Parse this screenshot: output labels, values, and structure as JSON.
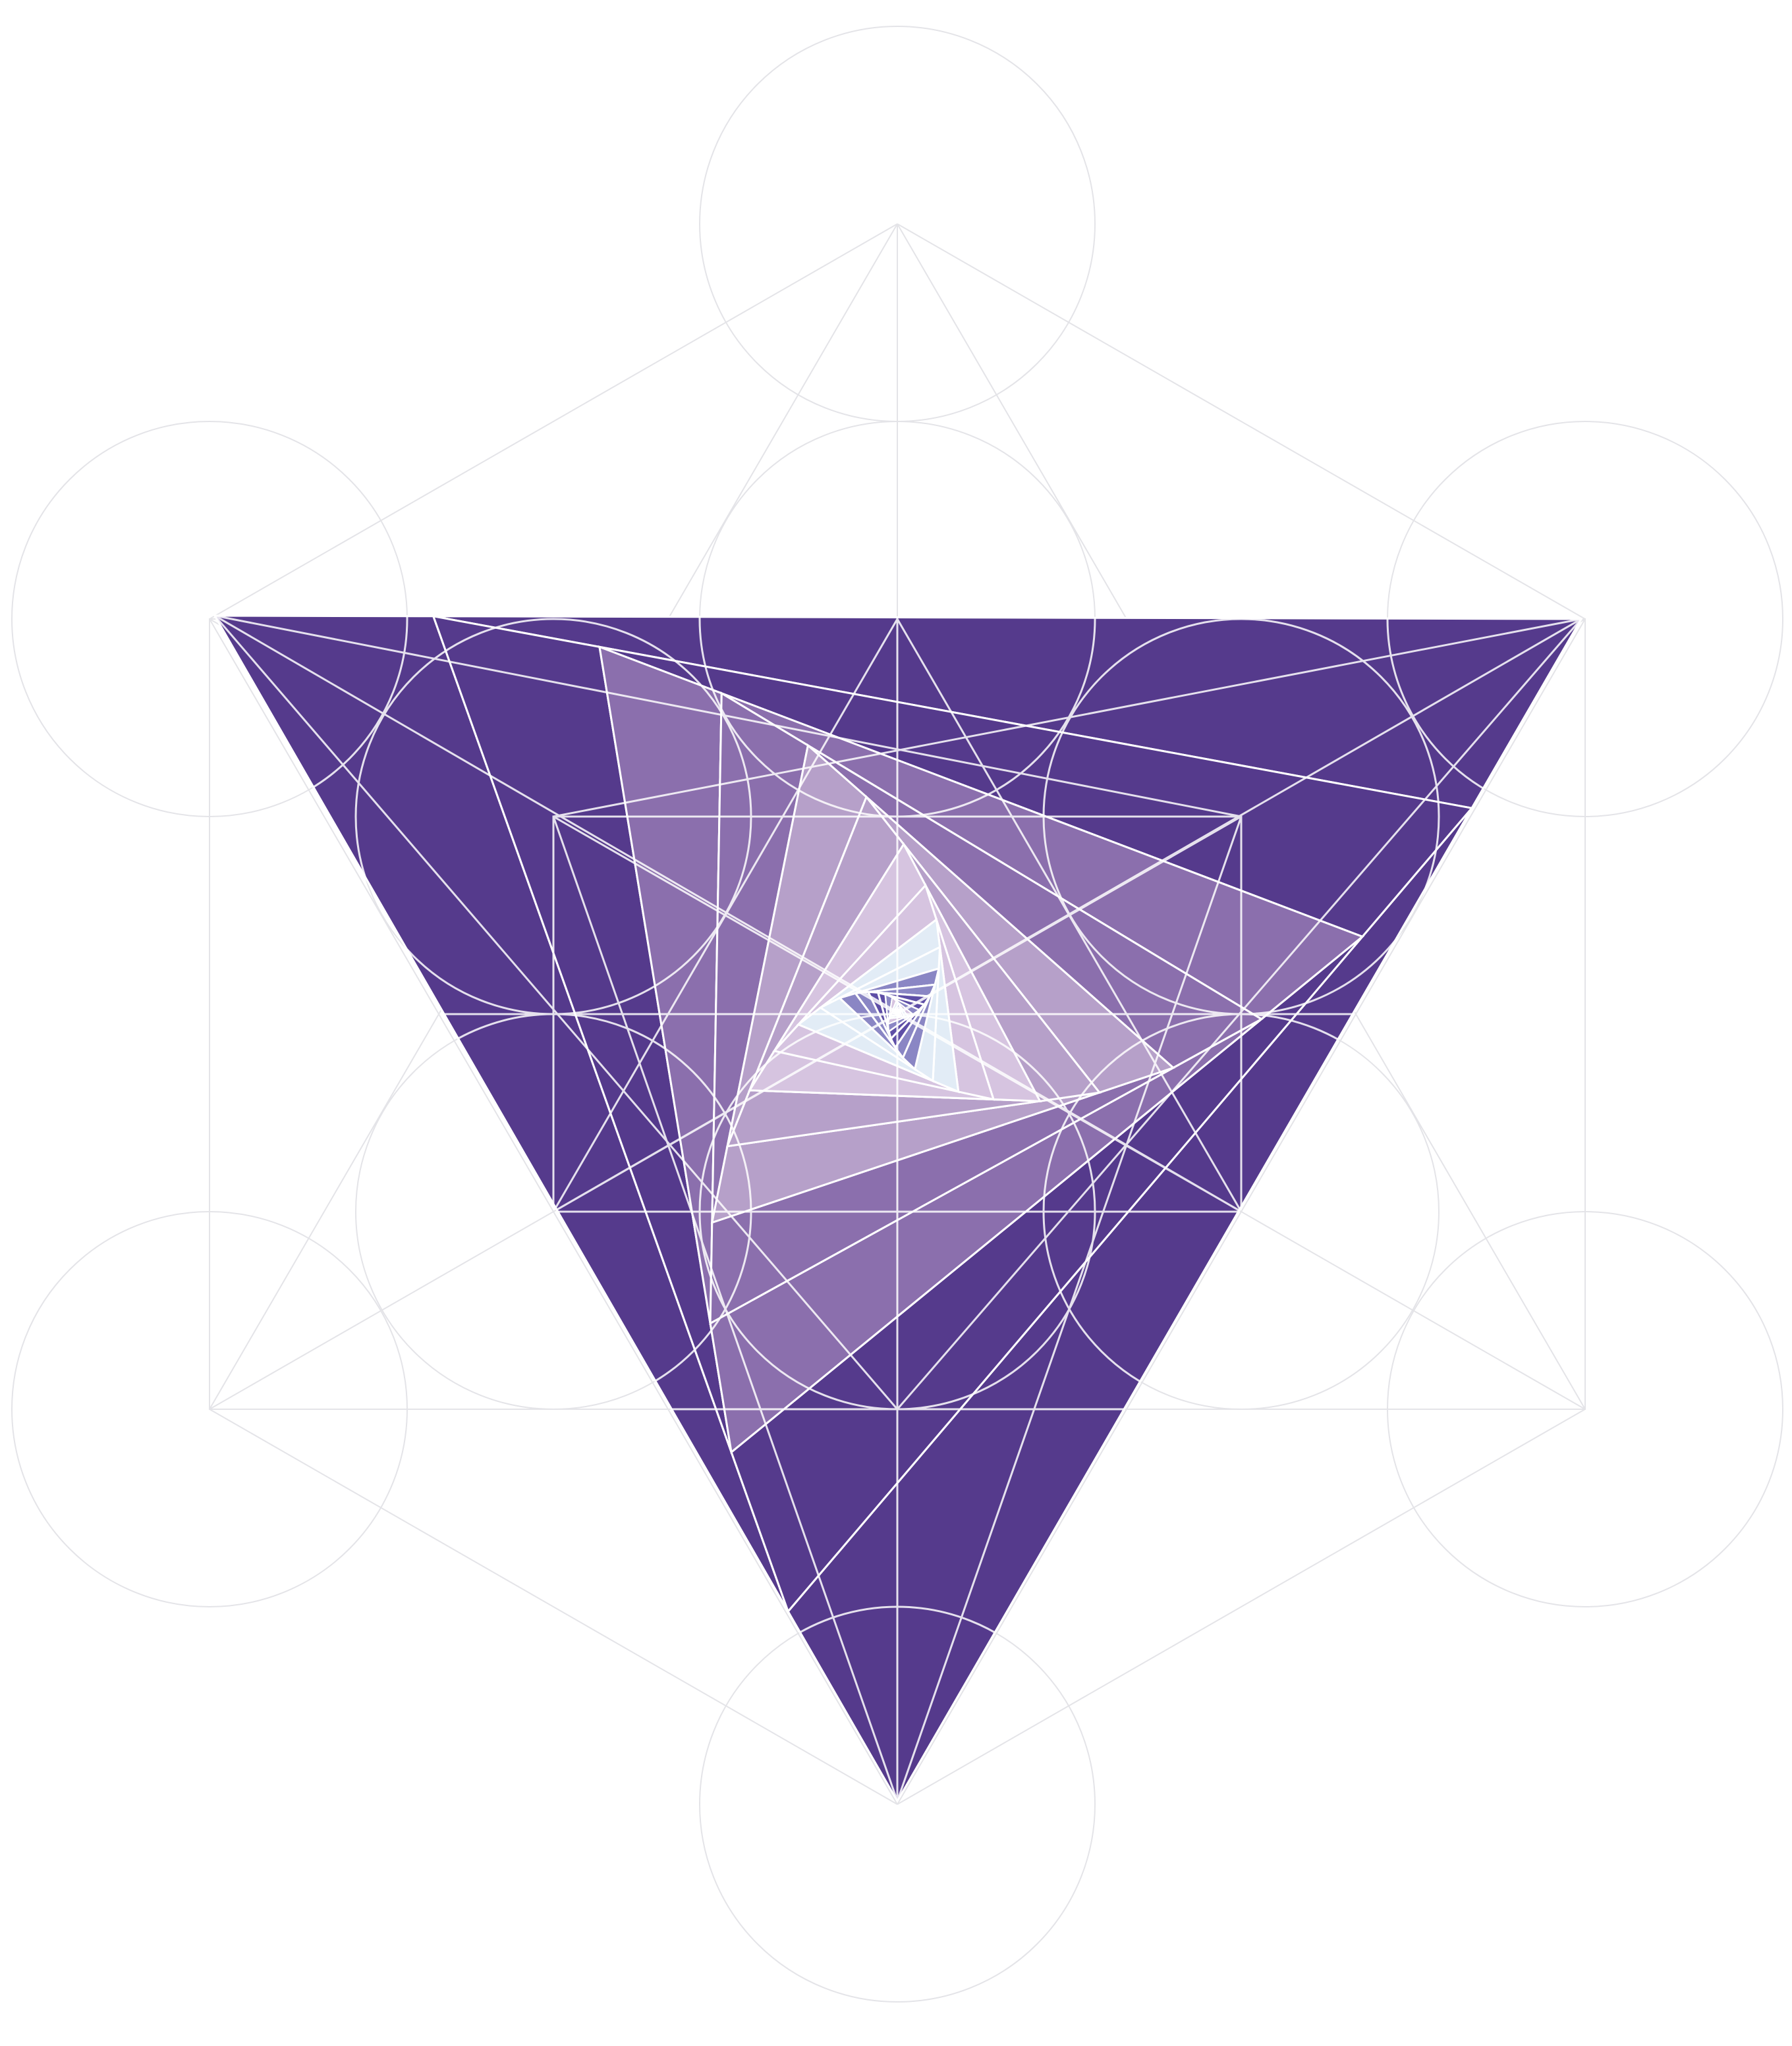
{
  "artwork": {
    "subject": "inverted-triangle-spiral-over-metatrons-cube",
    "colors": {
      "background": "#ffffff",
      "guide_lines": "#e4e4e8",
      "spiral_strokes": "#ffffff",
      "outer_fill": "#3a1f7a",
      "deep_purple": "#3a1f7a",
      "mid_purple": "#553a8c",
      "light_purple": "#8b6fad",
      "lavender": "#b6a0c9",
      "pale_lilac": "#d6c4e0",
      "ice_blue": "#e2ecf6",
      "periwinkle": "#8a86c4",
      "indigo_core": "#5e4ea6"
    },
    "spiral_layers": 14,
    "core_layers": 10
  }
}
